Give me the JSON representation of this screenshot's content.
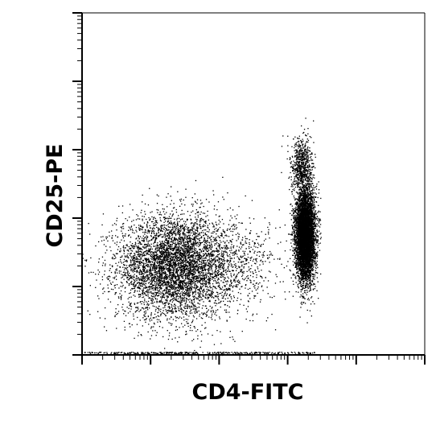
{
  "chart_data": {
    "type": "scatter",
    "xlabel": "CD4-FITC",
    "ylabel": "CD25-PE",
    "x_scale": "log",
    "y_scale": "log",
    "x_decades": 5,
    "y_decades": 5,
    "grid": false,
    "legend": "none",
    "colors": {
      "points": "#000000",
      "axes": "#000000",
      "background": "#ffffff"
    },
    "populations": [
      {
        "name": "",
        "x_center_decade": 1.35,
        "y_center_decade": 1.3,
        "x_spread": 0.42,
        "y_spread": 0.38,
        "count": 5200
      },
      {
        "name": "",
        "x_center_decade": 3.25,
        "y_center_decade": 1.75,
        "x_spread": 0.07,
        "y_spread": 0.32,
        "count": 6500
      },
      {
        "name": "",
        "x_center_decade": 3.2,
        "y_center_decade": 2.75,
        "x_spread": 0.08,
        "y_spread": 0.22,
        "count": 700
      },
      {
        "name": "",
        "x_center_decade": 2.3,
        "y_center_decade": 1.3,
        "x_spread": 0.35,
        "y_spread": 0.35,
        "count": 500
      }
    ]
  }
}
